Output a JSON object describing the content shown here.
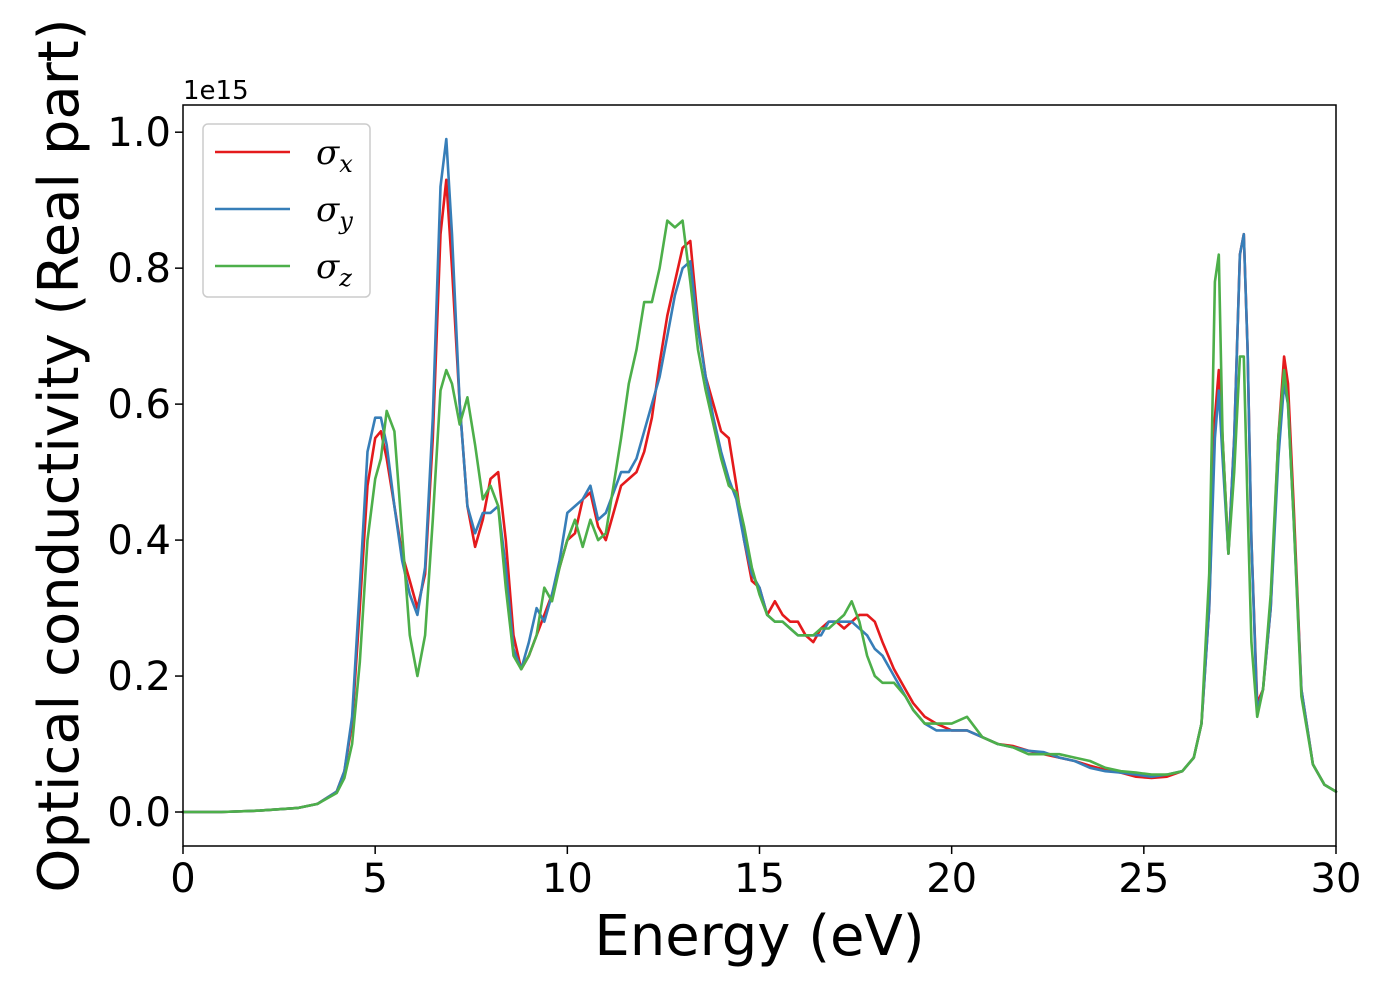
{
  "chart_data": {
    "type": "line",
    "xlabel": "Energy (eV)",
    "ylabel": "Optical conductivity (Real part)",
    "y_offset_label": "1e15",
    "xlim": [
      0,
      30
    ],
    "ylim": [
      -0.05,
      1.04
    ],
    "x_ticks": [
      0,
      5,
      10,
      15,
      20,
      25,
      30
    ],
    "y_ticks": [
      0.0,
      0.2,
      0.4,
      0.6,
      0.8,
      1.0
    ],
    "x_tick_labels": [
      "0",
      "5",
      "10",
      "15",
      "20",
      "25",
      "30"
    ],
    "y_tick_labels": [
      "0.0",
      "0.2",
      "0.4",
      "0.6",
      "0.8",
      "1.0"
    ],
    "grid": false,
    "legend_position": "top-left",
    "series": [
      {
        "name": "σx",
        "symbol": "σ",
        "subscript": "x",
        "color": "#e41a1c",
        "x": [
          0,
          1,
          2,
          3,
          3.5,
          4,
          4.2,
          4.4,
          4.6,
          4.8,
          5.0,
          5.15,
          5.3,
          5.5,
          5.7,
          5.9,
          6.1,
          6.3,
          6.5,
          6.7,
          6.85,
          7.0,
          7.2,
          7.4,
          7.6,
          7.8,
          8.0,
          8.2,
          8.4,
          8.6,
          8.8,
          9.0,
          9.2,
          9.4,
          9.6,
          9.8,
          10.0,
          10.2,
          10.4,
          10.6,
          10.8,
          11.0,
          11.2,
          11.4,
          11.6,
          11.8,
          12.0,
          12.2,
          12.4,
          12.6,
          12.8,
          13.0,
          13.2,
          13.4,
          13.6,
          13.8,
          14.0,
          14.2,
          14.4,
          14.6,
          14.8,
          15.0,
          15.2,
          15.4,
          15.6,
          15.8,
          16.0,
          16.2,
          16.4,
          16.6,
          16.8,
          17.0,
          17.2,
          17.4,
          17.6,
          17.8,
          18.0,
          18.2,
          18.5,
          18.8,
          19.0,
          19.3,
          19.6,
          20.0,
          20.4,
          20.8,
          21.2,
          21.6,
          22.0,
          22.4,
          22.8,
          23.2,
          23.6,
          24.0,
          24.4,
          24.8,
          25.2,
          25.6,
          26.0,
          26.3,
          26.5,
          26.7,
          26.85,
          26.95,
          27.05,
          27.2,
          27.35,
          27.5,
          27.6,
          27.7,
          27.8,
          27.95,
          28.1,
          28.3,
          28.5,
          28.65,
          28.75,
          28.9,
          29.1,
          29.4,
          29.7,
          30.0
        ],
        "y": [
          0.0,
          0.0,
          0.002,
          0.006,
          0.012,
          0.03,
          0.06,
          0.13,
          0.3,
          0.48,
          0.55,
          0.56,
          0.52,
          0.45,
          0.38,
          0.34,
          0.3,
          0.35,
          0.55,
          0.85,
          0.93,
          0.8,
          0.6,
          0.45,
          0.39,
          0.43,
          0.49,
          0.5,
          0.4,
          0.26,
          0.21,
          0.23,
          0.26,
          0.29,
          0.32,
          0.36,
          0.4,
          0.41,
          0.46,
          0.47,
          0.42,
          0.4,
          0.44,
          0.48,
          0.49,
          0.5,
          0.53,
          0.58,
          0.66,
          0.73,
          0.78,
          0.83,
          0.84,
          0.72,
          0.64,
          0.6,
          0.56,
          0.55,
          0.48,
          0.4,
          0.34,
          0.33,
          0.29,
          0.31,
          0.29,
          0.28,
          0.28,
          0.26,
          0.25,
          0.27,
          0.28,
          0.28,
          0.27,
          0.28,
          0.29,
          0.29,
          0.28,
          0.25,
          0.21,
          0.18,
          0.16,
          0.14,
          0.13,
          0.12,
          0.12,
          0.11,
          0.1,
          0.097,
          0.09,
          0.085,
          0.08,
          0.075,
          0.068,
          0.062,
          0.058,
          0.052,
          0.05,
          0.052,
          0.06,
          0.08,
          0.13,
          0.3,
          0.58,
          0.65,
          0.55,
          0.38,
          0.55,
          0.82,
          0.85,
          0.68,
          0.4,
          0.16,
          0.18,
          0.3,
          0.55,
          0.67,
          0.63,
          0.45,
          0.18,
          0.07,
          0.04,
          0.03
        ]
      },
      {
        "name": "σy",
        "symbol": "σ",
        "subscript": "y",
        "color": "#377eb8",
        "x": [
          0,
          1,
          2,
          3,
          3.5,
          4,
          4.2,
          4.4,
          4.6,
          4.8,
          5.0,
          5.15,
          5.3,
          5.5,
          5.7,
          5.9,
          6.1,
          6.3,
          6.5,
          6.7,
          6.85,
          7.0,
          7.2,
          7.4,
          7.6,
          7.8,
          8.0,
          8.2,
          8.4,
          8.6,
          8.8,
          9.0,
          9.2,
          9.4,
          9.6,
          9.8,
          10.0,
          10.2,
          10.4,
          10.6,
          10.8,
          11.0,
          11.2,
          11.4,
          11.6,
          11.8,
          12.0,
          12.2,
          12.4,
          12.6,
          12.8,
          13.0,
          13.2,
          13.4,
          13.6,
          13.8,
          14.0,
          14.2,
          14.4,
          14.6,
          14.8,
          15.0,
          15.2,
          15.4,
          15.6,
          15.8,
          16.0,
          16.2,
          16.4,
          16.6,
          16.8,
          17.0,
          17.2,
          17.4,
          17.6,
          17.8,
          18.0,
          18.2,
          18.5,
          18.8,
          19.0,
          19.3,
          19.6,
          20.0,
          20.4,
          20.8,
          21.2,
          21.6,
          22.0,
          22.4,
          22.8,
          23.2,
          23.6,
          24.0,
          24.4,
          24.8,
          25.2,
          25.6,
          26.0,
          26.3,
          26.5,
          26.7,
          26.85,
          26.95,
          27.05,
          27.2,
          27.35,
          27.5,
          27.6,
          27.7,
          27.8,
          27.95,
          28.1,
          28.3,
          28.5,
          28.65,
          28.75,
          28.9,
          29.1,
          29.4,
          29.7,
          30.0
        ],
        "y": [
          0.0,
          0.0,
          0.002,
          0.006,
          0.012,
          0.03,
          0.06,
          0.14,
          0.33,
          0.53,
          0.58,
          0.58,
          0.54,
          0.45,
          0.37,
          0.32,
          0.29,
          0.36,
          0.58,
          0.92,
          0.99,
          0.85,
          0.6,
          0.45,
          0.41,
          0.44,
          0.44,
          0.45,
          0.36,
          0.24,
          0.21,
          0.25,
          0.3,
          0.28,
          0.32,
          0.37,
          0.44,
          0.45,
          0.46,
          0.48,
          0.43,
          0.44,
          0.47,
          0.5,
          0.5,
          0.52,
          0.56,
          0.6,
          0.64,
          0.7,
          0.76,
          0.8,
          0.81,
          0.71,
          0.64,
          0.58,
          0.53,
          0.49,
          0.46,
          0.4,
          0.35,
          0.33,
          0.29,
          0.28,
          0.28,
          0.27,
          0.26,
          0.26,
          0.26,
          0.26,
          0.28,
          0.28,
          0.28,
          0.28,
          0.27,
          0.26,
          0.24,
          0.23,
          0.2,
          0.17,
          0.15,
          0.13,
          0.12,
          0.12,
          0.12,
          0.11,
          0.1,
          0.095,
          0.09,
          0.088,
          0.08,
          0.075,
          0.065,
          0.06,
          0.058,
          0.055,
          0.052,
          0.055,
          0.06,
          0.08,
          0.13,
          0.3,
          0.55,
          0.62,
          0.52,
          0.38,
          0.55,
          0.82,
          0.85,
          0.68,
          0.4,
          0.15,
          0.18,
          0.3,
          0.52,
          0.63,
          0.6,
          0.43,
          0.18,
          0.07,
          0.04,
          0.03
        ]
      },
      {
        "name": "σz",
        "symbol": "σ",
        "subscript": "z",
        "color": "#4daf4a",
        "x": [
          0,
          1,
          2,
          3,
          3.5,
          4,
          4.2,
          4.4,
          4.6,
          4.8,
          5.0,
          5.15,
          5.3,
          5.5,
          5.7,
          5.9,
          6.1,
          6.3,
          6.5,
          6.7,
          6.85,
          7.0,
          7.2,
          7.4,
          7.6,
          7.8,
          8.0,
          8.2,
          8.4,
          8.6,
          8.8,
          9.0,
          9.2,
          9.4,
          9.6,
          9.8,
          10.0,
          10.2,
          10.4,
          10.6,
          10.8,
          11.0,
          11.2,
          11.4,
          11.6,
          11.8,
          12.0,
          12.2,
          12.4,
          12.6,
          12.8,
          13.0,
          13.2,
          13.4,
          13.6,
          13.8,
          14.0,
          14.2,
          14.4,
          14.6,
          14.8,
          15.0,
          15.2,
          15.4,
          15.6,
          15.8,
          16.0,
          16.2,
          16.4,
          16.6,
          16.8,
          17.0,
          17.2,
          17.4,
          17.6,
          17.8,
          18.0,
          18.2,
          18.5,
          18.8,
          19.0,
          19.3,
          19.6,
          20.0,
          20.4,
          20.8,
          21.2,
          21.6,
          22.0,
          22.4,
          22.8,
          23.2,
          23.6,
          24.0,
          24.4,
          24.8,
          25.2,
          25.6,
          26.0,
          26.3,
          26.5,
          26.7,
          26.85,
          26.95,
          27.05,
          27.2,
          27.35,
          27.5,
          27.6,
          27.7,
          27.8,
          27.95,
          28.1,
          28.3,
          28.5,
          28.65,
          28.75,
          28.9,
          29.1,
          29.4,
          29.7,
          30.0
        ],
        "y": [
          0.0,
          0.0,
          0.002,
          0.006,
          0.012,
          0.028,
          0.05,
          0.1,
          0.22,
          0.4,
          0.49,
          0.52,
          0.59,
          0.56,
          0.41,
          0.26,
          0.2,
          0.26,
          0.43,
          0.62,
          0.65,
          0.63,
          0.57,
          0.61,
          0.54,
          0.46,
          0.48,
          0.45,
          0.33,
          0.23,
          0.21,
          0.23,
          0.26,
          0.33,
          0.31,
          0.36,
          0.4,
          0.43,
          0.39,
          0.43,
          0.4,
          0.41,
          0.48,
          0.55,
          0.63,
          0.68,
          0.75,
          0.75,
          0.8,
          0.87,
          0.86,
          0.87,
          0.78,
          0.68,
          0.62,
          0.57,
          0.52,
          0.48,
          0.47,
          0.42,
          0.36,
          0.32,
          0.29,
          0.28,
          0.28,
          0.27,
          0.26,
          0.26,
          0.26,
          0.27,
          0.27,
          0.28,
          0.29,
          0.31,
          0.28,
          0.23,
          0.2,
          0.19,
          0.19,
          0.17,
          0.15,
          0.13,
          0.13,
          0.13,
          0.14,
          0.11,
          0.1,
          0.095,
          0.085,
          0.085,
          0.085,
          0.08,
          0.075,
          0.065,
          0.06,
          0.058,
          0.055,
          0.055,
          0.06,
          0.08,
          0.13,
          0.35,
          0.78,
          0.82,
          0.55,
          0.38,
          0.5,
          0.67,
          0.67,
          0.45,
          0.25,
          0.14,
          0.18,
          0.32,
          0.55,
          0.65,
          0.6,
          0.43,
          0.17,
          0.07,
          0.04,
          0.03
        ]
      }
    ]
  }
}
